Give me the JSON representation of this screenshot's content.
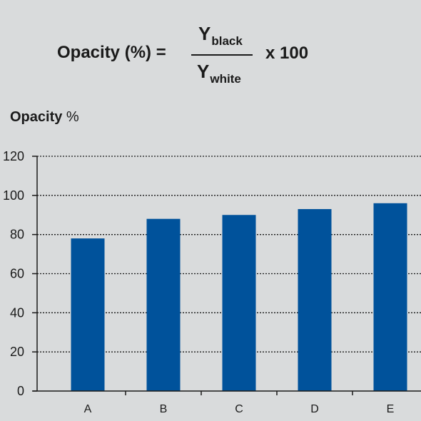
{
  "formula": {
    "lhs": "Opacity (%) =",
    "numerator": "Y",
    "numerator_sub": "black",
    "denominator": "Y",
    "denominator_sub": "white",
    "multiplier": "x 100"
  },
  "chart_data": {
    "type": "bar",
    "title": "",
    "ylabel_bold": "Opacity",
    "ylabel_unit": " %",
    "xlabel": "",
    "categories": [
      "A",
      "B",
      "C",
      "D",
      "E"
    ],
    "values": [
      78,
      88,
      90,
      93,
      96
    ],
    "ylim": [
      0,
      120
    ],
    "yticks": [
      0,
      20,
      40,
      60,
      80,
      100,
      120
    ],
    "grid": "horizontal-dotted",
    "legend": "none",
    "bar_color": "#00529b",
    "axis_color": "#1a1a1a"
  }
}
